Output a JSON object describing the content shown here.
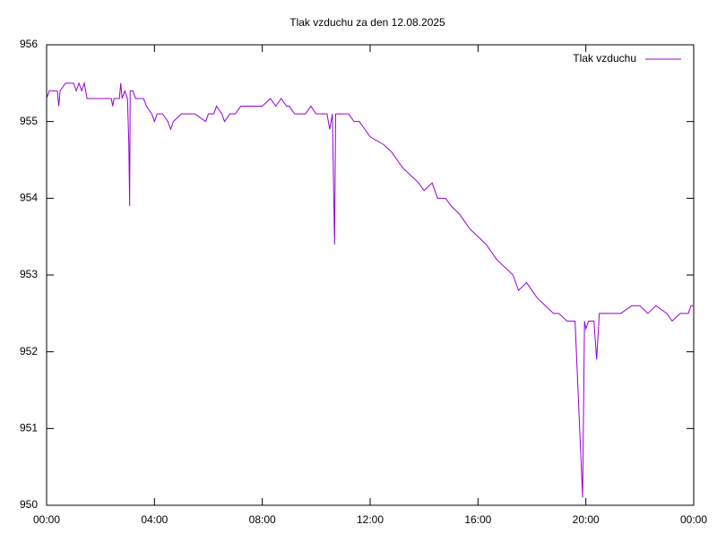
{
  "chart_data": {
    "type": "line",
    "title": "Tlak vzduchu za den 12.08.2025",
    "x": [
      0.0,
      0.1,
      0.4,
      0.45,
      0.5,
      0.7,
      1.0,
      1.1,
      1.2,
      1.3,
      1.4,
      1.5,
      2.0,
      2.4,
      2.45,
      2.5,
      2.7,
      2.75,
      2.8,
      2.9,
      3.0,
      3.05,
      3.08,
      3.1,
      3.2,
      3.3,
      3.6,
      3.7,
      3.9,
      4.0,
      4.1,
      4.3,
      4.5,
      4.6,
      4.7,
      5.0,
      5.5,
      5.9,
      6.0,
      6.2,
      6.3,
      6.5,
      6.6,
      6.8,
      7.0,
      7.2,
      7.5,
      8.0,
      8.3,
      8.5,
      8.7,
      8.9,
      9.0,
      9.2,
      9.6,
      9.8,
      10.0,
      10.4,
      10.5,
      10.6,
      10.68,
      10.72,
      11.0,
      11.2,
      11.4,
      11.6,
      11.8,
      12.0,
      12.5,
      12.8,
      13.0,
      13.2,
      13.5,
      13.8,
      14.0,
      14.3,
      14.5,
      14.8,
      15.0,
      15.3,
      15.5,
      15.7,
      16.0,
      16.3,
      16.7,
      17.0,
      17.3,
      17.5,
      17.8,
      18.2,
      18.5,
      18.8,
      19.0,
      19.3,
      19.6,
      19.88,
      19.95,
      20.0,
      20.1,
      20.3,
      20.4,
      20.5,
      20.8,
      21.0,
      21.3,
      21.7,
      22.0,
      22.3,
      22.6,
      23.0,
      23.2,
      23.5,
      23.8,
      23.9,
      24.0
    ],
    "series": [
      {
        "name": "Tlak vzduchu",
        "color": "#9400d3",
        "values": [
          955.3,
          955.4,
          955.4,
          955.2,
          955.4,
          955.5,
          955.5,
          955.4,
          955.5,
          955.4,
          955.5,
          955.3,
          955.3,
          955.3,
          955.2,
          955.3,
          955.3,
          955.5,
          955.3,
          955.4,
          955.3,
          954.7,
          953.9,
          955.4,
          955.4,
          955.3,
          955.3,
          955.2,
          955.1,
          955.0,
          955.1,
          955.1,
          955.0,
          954.9,
          955.0,
          955.1,
          955.1,
          955.0,
          955.1,
          955.1,
          955.2,
          955.1,
          955.0,
          955.1,
          955.1,
          955.2,
          955.2,
          955.2,
          955.3,
          955.2,
          955.3,
          955.2,
          955.2,
          955.1,
          955.1,
          955.2,
          955.1,
          955.1,
          954.9,
          955.1,
          953.4,
          955.1,
          955.1,
          955.1,
          955.0,
          955.0,
          954.9,
          954.8,
          954.7,
          954.6,
          954.5,
          954.4,
          954.3,
          954.2,
          954.1,
          954.2,
          954.0,
          954.0,
          953.9,
          953.8,
          953.7,
          953.6,
          953.5,
          953.4,
          953.2,
          953.1,
          953.0,
          952.8,
          952.9,
          952.7,
          952.6,
          952.5,
          952.5,
          952.4,
          952.4,
          950.1,
          952.4,
          952.3,
          952.4,
          952.4,
          951.9,
          952.5,
          952.5,
          952.5,
          952.5,
          952.6,
          952.6,
          952.5,
          952.6,
          952.5,
          952.4,
          952.5,
          952.5,
          952.6,
          952.6
        ]
      }
    ],
    "xlim": [
      0,
      24
    ],
    "xticks": [
      {
        "value": 0,
        "label": "00:00"
      },
      {
        "value": 4,
        "label": "04:00"
      },
      {
        "value": 8,
        "label": "08:00"
      },
      {
        "value": 12,
        "label": "12:00"
      },
      {
        "value": 16,
        "label": "16:00"
      },
      {
        "value": 20,
        "label": "20:00"
      },
      {
        "value": 24,
        "label": "00:00"
      }
    ],
    "ylim": [
      950,
      956
    ],
    "yticks": [
      950,
      951,
      952,
      953,
      954,
      955,
      956
    ],
    "grid": false,
    "legend": "top-right"
  }
}
